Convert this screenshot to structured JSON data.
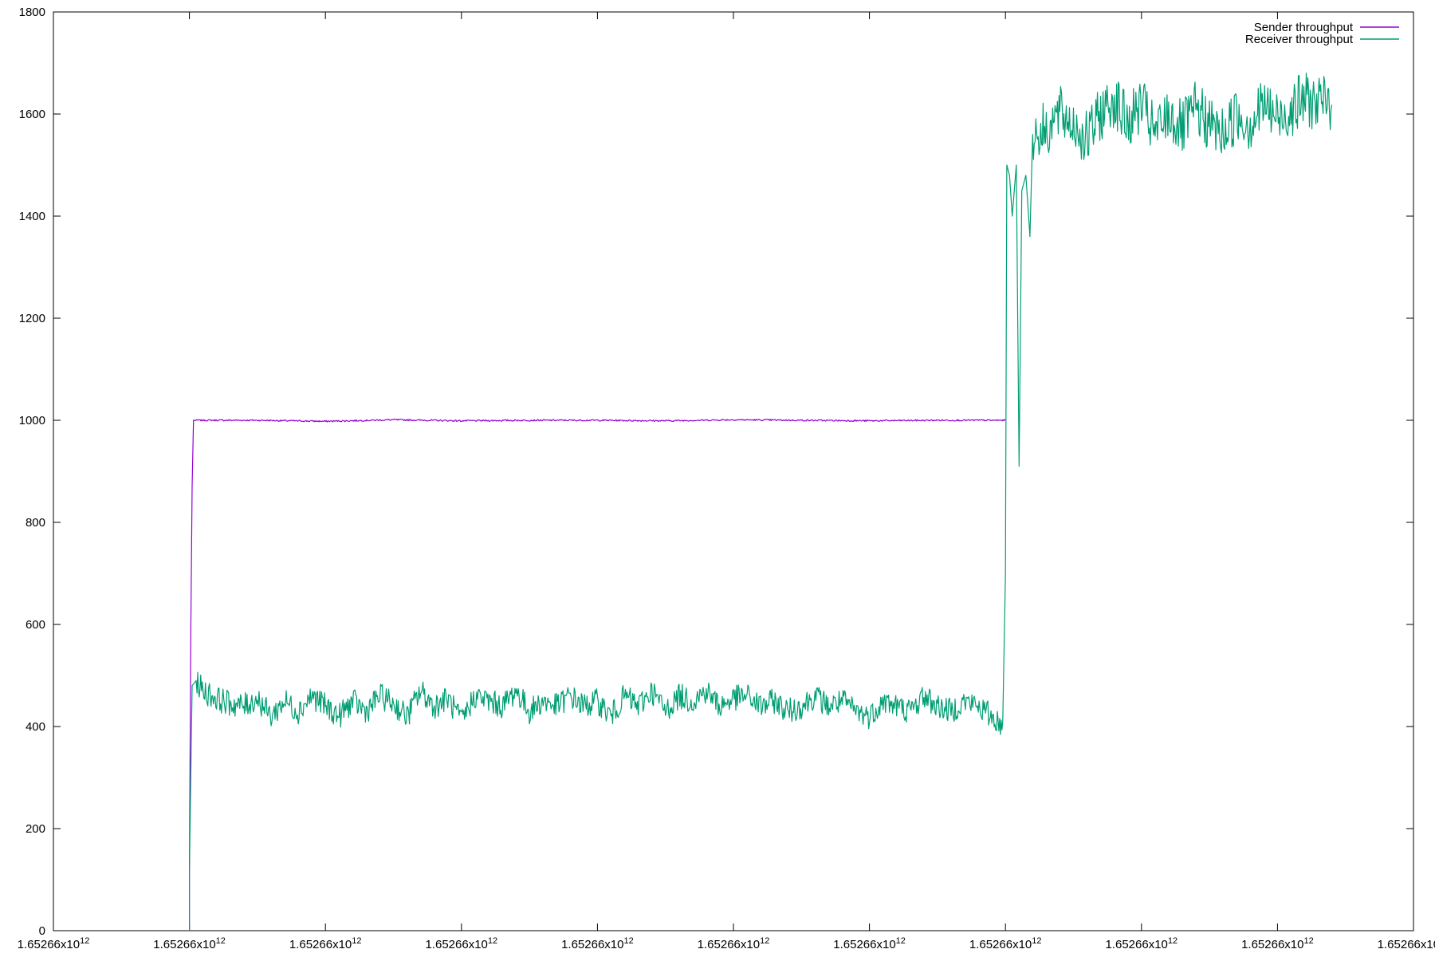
{
  "chart_data": {
    "type": "line",
    "title": "",
    "xlabel": "",
    "ylabel": "",
    "ylim": [
      0,
      1800
    ],
    "xlim": [
      0,
      10
    ],
    "grid": false,
    "legend_position": "top-right",
    "y_ticks": [
      0,
      200,
      400,
      600,
      800,
      1000,
      1200,
      1400,
      1600,
      1800
    ],
    "x_ticks": [
      {
        "pos": 0,
        "base": "1.65266x10",
        "exp": "12"
      },
      {
        "pos": 1,
        "base": "1.65266x10",
        "exp": "12"
      },
      {
        "pos": 2,
        "base": "1.65266x10",
        "exp": "12"
      },
      {
        "pos": 3,
        "base": "1.65266x10",
        "exp": "12"
      },
      {
        "pos": 4,
        "base": "1.65266x10",
        "exp": "12"
      },
      {
        "pos": 5,
        "base": "1.65266x10",
        "exp": "12"
      },
      {
        "pos": 6,
        "base": "1.65266x10",
        "exp": "12"
      },
      {
        "pos": 7,
        "base": "1.65266x10",
        "exp": "12"
      },
      {
        "pos": 8,
        "base": "1.65266x10",
        "exp": "12"
      },
      {
        "pos": 9,
        "base": "1.65266x10",
        "exp": "12"
      },
      {
        "pos": 10,
        "base": "1.65266x10",
        "exp": "12"
      }
    ],
    "series": [
      {
        "name": "Sender throughput",
        "color": "#9400d3",
        "points": [
          [
            1.0,
            0
          ],
          [
            1.0,
            120
          ],
          [
            1.01,
            580
          ],
          [
            1.02,
            870
          ],
          [
            1.03,
            1000
          ],
          [
            1.5,
            1000
          ],
          [
            2.0,
            998
          ],
          [
            2.5,
            1001
          ],
          [
            3.0,
            999
          ],
          [
            3.5,
            1000
          ],
          [
            4.0,
            1000
          ],
          [
            4.5,
            999
          ],
          [
            5.0,
            1001
          ],
          [
            5.5,
            1000
          ],
          [
            6.0,
            999
          ],
          [
            6.5,
            1000
          ],
          [
            7.0,
            1000
          ]
        ]
      },
      {
        "name": "Receiver throughput",
        "color": "#009e73",
        "points": [
          [
            1.0,
            0
          ],
          [
            1.0,
            120
          ],
          [
            1.02,
            480
          ],
          [
            1.05,
            490
          ],
          [
            1.1,
            470
          ],
          [
            1.2,
            455
          ],
          [
            1.3,
            445
          ],
          [
            1.4,
            440
          ],
          [
            1.5,
            455
          ],
          [
            1.6,
            420
          ],
          [
            1.7,
            450
          ],
          [
            1.8,
            430
          ],
          [
            1.9,
            460
          ],
          [
            2.0,
            440
          ],
          [
            2.1,
            420
          ],
          [
            2.2,
            450
          ],
          [
            2.3,
            430
          ],
          [
            2.4,
            460
          ],
          [
            2.5,
            445
          ],
          [
            2.6,
            420
          ],
          [
            2.7,
            470
          ],
          [
            2.8,
            440
          ],
          [
            2.9,
            455
          ],
          [
            3.0,
            410
          ],
          [
            3.1,
            460
          ],
          [
            3.2,
            450
          ],
          [
            3.3,
            440
          ],
          [
            3.4,
            470
          ],
          [
            3.5,
            430
          ],
          [
            3.6,
            450
          ],
          [
            3.7,
            440
          ],
          [
            3.8,
            460
          ],
          [
            3.9,
            440
          ],
          [
            4.0,
            450
          ],
          [
            4.1,
            420
          ],
          [
            4.2,
            460
          ],
          [
            4.3,
            440
          ],
          [
            4.4,
            470
          ],
          [
            4.5,
            430
          ],
          [
            4.6,
            460
          ],
          [
            4.7,
            450
          ],
          [
            4.8,
            470
          ],
          [
            4.9,
            440
          ],
          [
            5.0,
            455
          ],
          [
            5.1,
            460
          ],
          [
            5.2,
            440
          ],
          [
            5.3,
            450
          ],
          [
            5.4,
            430
          ],
          [
            5.5,
            440
          ],
          [
            5.6,
            460
          ],
          [
            5.7,
            440
          ],
          [
            5.8,
            450
          ],
          [
            5.9,
            430
          ],
          [
            6.0,
            420
          ],
          [
            6.1,
            450
          ],
          [
            6.2,
            440
          ],
          [
            6.3,
            430
          ],
          [
            6.4,
            460
          ],
          [
            6.5,
            440
          ],
          [
            6.6,
            430
          ],
          [
            6.7,
            450
          ],
          [
            6.8,
            440
          ],
          [
            6.9,
            420
          ],
          [
            6.98,
            400
          ],
          [
            7.0,
            700
          ],
          [
            7.01,
            1500
          ],
          [
            7.03,
            1480
          ],
          [
            7.05,
            1400
          ],
          [
            7.08,
            1500
          ],
          [
            7.1,
            910
          ],
          [
            7.12,
            1450
          ],
          [
            7.15,
            1480
          ],
          [
            7.18,
            1360
          ],
          [
            7.2,
            1560
          ],
          [
            7.3,
            1570
          ],
          [
            7.4,
            1600
          ],
          [
            7.5,
            1580
          ],
          [
            7.6,
            1550
          ],
          [
            7.7,
            1600
          ],
          [
            7.8,
            1630
          ],
          [
            7.9,
            1580
          ],
          [
            8.0,
            1620
          ],
          [
            8.1,
            1560
          ],
          [
            8.2,
            1600
          ],
          [
            8.3,
            1570
          ],
          [
            8.4,
            1610
          ],
          [
            8.5,
            1580
          ],
          [
            8.6,
            1560
          ],
          [
            8.7,
            1600
          ],
          [
            8.8,
            1580
          ],
          [
            8.9,
            1620
          ],
          [
            9.0,
            1590
          ],
          [
            9.1,
            1610
          ],
          [
            9.2,
            1630
          ],
          [
            9.3,
            1620
          ],
          [
            9.4,
            1620
          ]
        ]
      }
    ]
  }
}
